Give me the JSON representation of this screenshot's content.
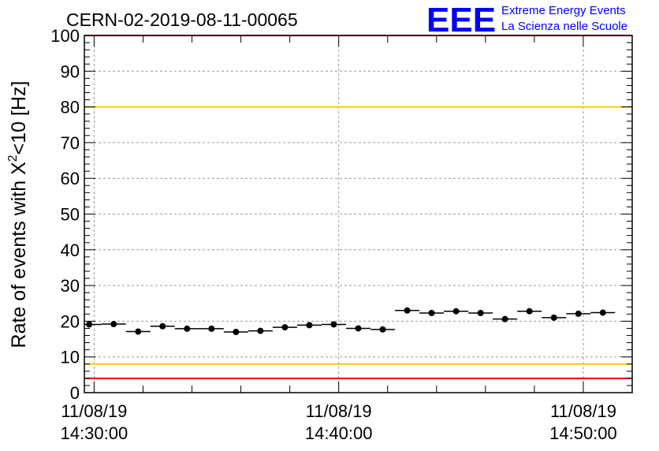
{
  "header": {
    "run_id": "CERN-02-2019-08-11-00065",
    "logo_text": "EEE",
    "logo_line1": "Extreme Energy Events",
    "logo_line2": "La Scienza nelle Scuole"
  },
  "colors": {
    "points": "#000000",
    "red_line": "#ff0000",
    "yellow_line": "#ffcc00",
    "logo_blue": "#0000ff",
    "grid": "#9a9a9a"
  },
  "chart_data": {
    "type": "scatter",
    "title": "CERN-02-2019-08-11-00065",
    "ylabel_main": "Rate of events with X",
    "ylabel_sup": "2",
    "ylabel_tail": "<10 [Hz]",
    "ylim": [
      0,
      100
    ],
    "yticks": [
      0,
      10,
      20,
      30,
      40,
      50,
      60,
      70,
      80,
      90,
      100
    ],
    "xlim_minutes": [
      -0.4,
      22.0
    ],
    "x_ticks": [
      {
        "minute": 0,
        "date": "11/08/19",
        "time": "14:30:00"
      },
      {
        "minute": 10,
        "date": "11/08/19",
        "time": "14:40:00"
      },
      {
        "minute": 20,
        "date": "11/08/19",
        "time": "14:50:00"
      }
    ],
    "x_time_label": "14:30:00",
    "bin_width_minutes": 1.0,
    "grid": true,
    "hlines": [
      {
        "y": 80,
        "color": "#ffcc00"
      },
      {
        "y": 8,
        "color": "#ffcc00"
      },
      {
        "y": 4,
        "color": "#ff0000"
      },
      {
        "y": 100,
        "color": "#ff0000"
      }
    ],
    "series": [
      {
        "x": [
          -0.2,
          0.8,
          1.8,
          2.8,
          3.8,
          4.8,
          5.8,
          6.8,
          7.8,
          8.8,
          9.8,
          10.8,
          11.8,
          12.8,
          13.8,
          14.8,
          15.8,
          16.8,
          17.8,
          18.8,
          19.8,
          20.8
        ],
        "y": [
          19.1,
          19.2,
          17.1,
          18.6,
          17.9,
          17.9,
          17.0,
          17.3,
          18.3,
          18.9,
          19.1,
          18.0,
          17.7,
          23.0,
          22.3,
          22.8,
          22.3,
          20.6,
          22.8,
          21.0,
          22.1,
          22.4
        ]
      }
    ]
  }
}
